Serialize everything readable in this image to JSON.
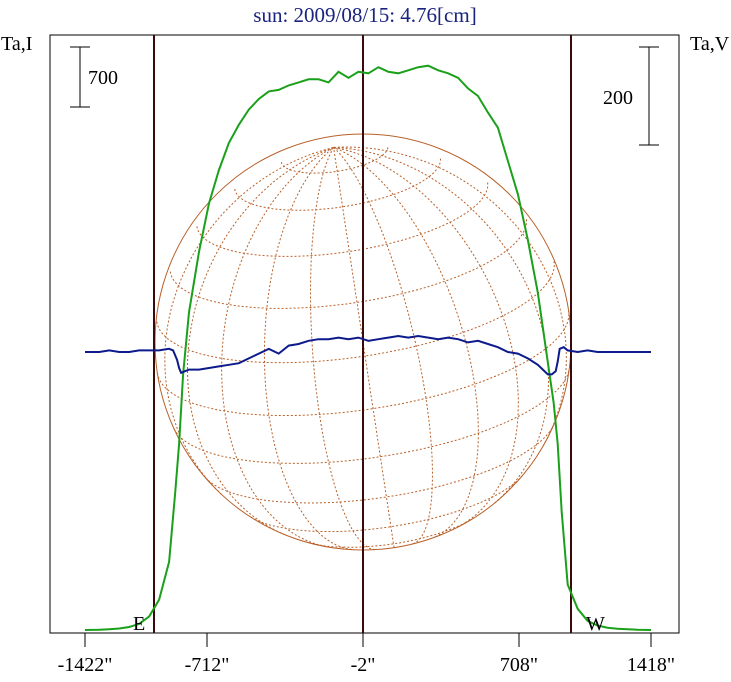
{
  "chart_data": {
    "type": "line",
    "title": "sun: 2009/08/15: 4.76[cm]",
    "left_axis_label": "Ta,I",
    "right_axis_label": "Ta,V",
    "scale_bar_left": "700",
    "scale_bar_right": "200",
    "x_ticks": [
      "-1422\"",
      "-712\"",
      "-2\"",
      "708\"",
      "1418\""
    ],
    "x_range": [
      -1422,
      1418
    ],
    "limb_markers": [
      {
        "label": "E",
        "x": -950
      },
      {
        "label": "W",
        "x": 950
      }
    ],
    "series": [
      {
        "name": "Ta,I",
        "color": "#1aa01a",
        "x": [
          -1422,
          -1350,
          -1300,
          -1250,
          -1200,
          -1150,
          -1100,
          -1050,
          -1000,
          -970,
          -950,
          -930,
          -900,
          -850,
          -800,
          -750,
          -700,
          -650,
          -600,
          -550,
          -500,
          -450,
          -400,
          -350,
          -300,
          -250,
          -200,
          -150,
          -100,
          -50,
          0,
          50,
          100,
          150,
          200,
          250,
          300,
          350,
          400,
          450,
          500,
          550,
          600,
          650,
          700,
          750,
          800,
          850,
          900,
          930,
          950,
          970,
          1000,
          1050,
          1100,
          1150,
          1200,
          1250,
          1300,
          1350,
          1418
        ],
        "values": [
          0,
          2,
          5,
          10,
          20,
          40,
          90,
          200,
          450,
          900,
          1230,
          1690,
          2100,
          2500,
          2820,
          3040,
          3220,
          3340,
          3440,
          3510,
          3560,
          3570,
          3600,
          3620,
          3640,
          3640,
          3620,
          3690,
          3650,
          3690,
          3680,
          3720,
          3690,
          3680,
          3700,
          3720,
          3730,
          3700,
          3680,
          3650,
          3580,
          3530,
          3420,
          3320,
          3100,
          2880,
          2580,
          2230,
          1770,
          1500,
          1230,
          780,
          300,
          140,
          60,
          30,
          15,
          8,
          5,
          2,
          0
        ]
      },
      {
        "name": "Ta,V",
        "color": "#0d1a8c",
        "x": [
          -1422,
          -1350,
          -1300,
          -1250,
          -1200,
          -1150,
          -1100,
          -1050,
          -1000,
          -980,
          -960,
          -950,
          -940,
          -920,
          -900,
          -850,
          -800,
          -750,
          -700,
          -650,
          -600,
          -550,
          -500,
          -450,
          -400,
          -350,
          -300,
          -250,
          -200,
          -150,
          -100,
          -50,
          0,
          50,
          100,
          150,
          200,
          250,
          300,
          350,
          400,
          450,
          500,
          550,
          600,
          650,
          700,
          750,
          800,
          850,
          900,
          920,
          940,
          950,
          960,
          980,
          1000,
          1050,
          1100,
          1150,
          1200,
          1250,
          1300,
          1350,
          1418
        ],
        "values": [
          0,
          0,
          1,
          0,
          0,
          1,
          1,
          1,
          2,
          1,
          -5,
          -10,
          -13,
          -12,
          -11,
          -11,
          -10,
          -9,
          -8,
          -7,
          -4,
          -1,
          2,
          -1,
          4,
          5,
          7,
          8,
          8,
          9,
          8,
          9,
          7,
          8,
          9,
          10,
          9,
          10,
          9,
          8,
          9,
          8,
          6,
          7,
          5,
          3,
          0,
          -1,
          -4,
          -8,
          -14,
          -14,
          -12,
          -6,
          2,
          3,
          1,
          0,
          1,
          0,
          0,
          0,
          0,
          0,
          0
        ]
      }
    ],
    "ylim_I": [
      0,
      3900
    ],
    "ylim_V": [
      -100,
      100
    ]
  }
}
